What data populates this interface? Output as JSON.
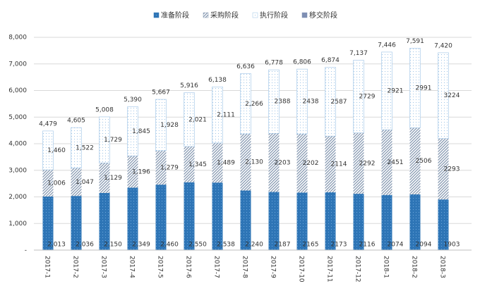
{
  "chart_data": {
    "type": "stacked_bar",
    "categories": [
      "2017-1",
      "2017-2",
      "2017-3",
      "2017-4",
      "2017-5",
      "2017-6",
      "2017-7",
      "2017-8",
      "2017-9",
      "2017-10",
      "2017-11",
      "2017-12",
      "2018-1",
      "2018-2",
      "2018-3"
    ],
    "series": [
      {
        "name": "准备阶段",
        "color": "#2e75b6",
        "values": [
          2013,
          2036,
          2150,
          2349,
          2460,
          2550,
          2538,
          2240,
          2187,
          2165,
          2173,
          2116,
          2074,
          2094,
          1903
        ],
        "value_labels": [
          "2,013",
          "2,036",
          "2,150",
          "2,349",
          "2,460",
          "2,550",
          "2,538",
          "2,240",
          "2187",
          "2165",
          "2173",
          "2116",
          "2074",
          "2094",
          "1903"
        ]
      },
      {
        "name": "采购阶段",
        "color": "#8497b0",
        "values": [
          1006,
          1047,
          1129,
          1196,
          1279,
          1345,
          1489,
          2130,
          2203,
          2202,
          2114,
          2292,
          2451,
          2506,
          2293
        ],
        "value_labels": [
          "1,006",
          "1,047",
          "1,129",
          "1,196",
          "1,279",
          "1,345",
          "1,489",
          "2,130",
          "2203",
          "2202",
          "2114",
          "2292",
          "2451",
          "2506",
          "2293"
        ]
      },
      {
        "name": "执行阶段",
        "color": "#9dc3e6",
        "values": [
          1460,
          1522,
          1729,
          1845,
          1928,
          2021,
          2111,
          2266,
          2388,
          2438,
          2587,
          2729,
          2921,
          2991,
          3224
        ],
        "value_labels": [
          "1,460",
          "1,522",
          "1,729",
          "1,845",
          "1,928",
          "2,021",
          "2,111",
          "2,266",
          "2388",
          "2438",
          "2587",
          "2729",
          "2921",
          "2991",
          "3224"
        ]
      },
      {
        "name": "移交阶段",
        "color": "#7f8fb3",
        "values": [
          0,
          0,
          0,
          0,
          0,
          0,
          0,
          0,
          0,
          0,
          0,
          0,
          0,
          0,
          0
        ]
      }
    ],
    "totals": [
      4479,
      4605,
      5008,
      5390,
      5667,
      5916,
      6138,
      6636,
      6778,
      6806,
      6874,
      7137,
      7446,
      7591,
      7420
    ],
    "total_labels": [
      "4,479",
      "4,605",
      "5,008",
      "5,390",
      "5,667",
      "5,916",
      "6,138",
      "6,636",
      "6,778",
      "6,806",
      "6,874",
      "7,137",
      "7,446",
      "7,591",
      "7,420"
    ],
    "ylim": [
      0,
      8000
    ],
    "yticks": [
      {
        "value": 0,
        "label": "-"
      },
      {
        "value": 1000,
        "label": "1,000"
      },
      {
        "value": 2000,
        "label": "2,000"
      },
      {
        "value": 3000,
        "label": "3,000"
      },
      {
        "value": 4000,
        "label": "4,000"
      },
      {
        "value": 5000,
        "label": "5,000"
      },
      {
        "value": 6000,
        "label": "6,000"
      },
      {
        "value": 7000,
        "label": "7,000"
      },
      {
        "value": 8000,
        "label": "8,000"
      }
    ],
    "grid": true,
    "legend": "top"
  }
}
